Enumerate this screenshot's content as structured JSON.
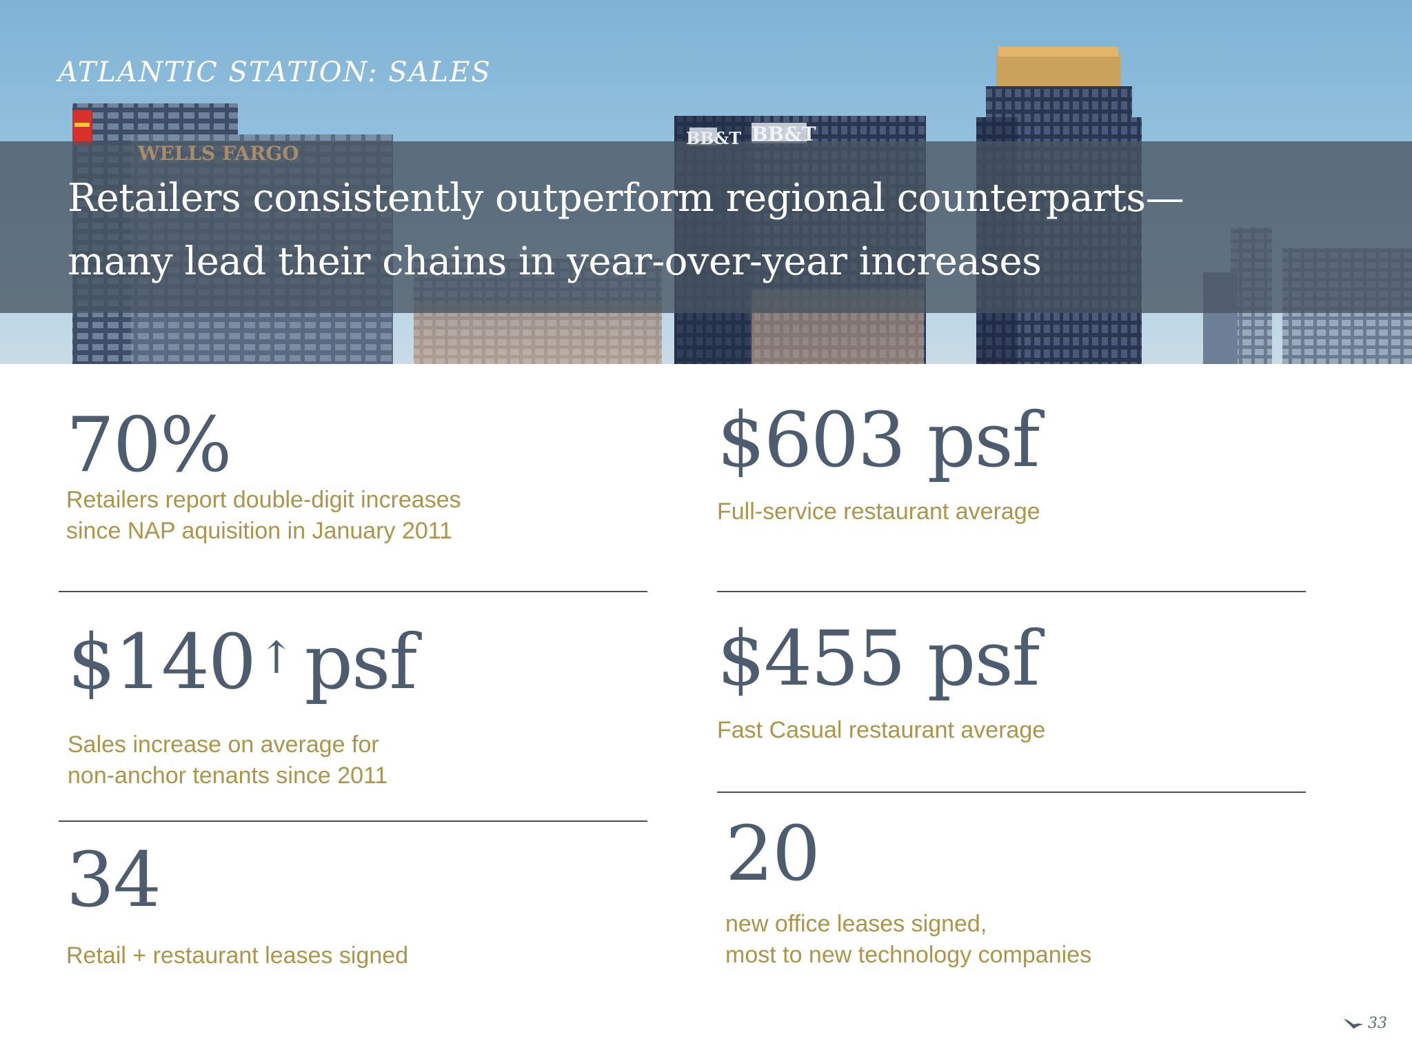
{
  "header": {
    "section_label": "ATLANTIC STATION: SALES",
    "headline_lines": [
      "Retailers consistently outperform regional counterparts—",
      "many lead their chains in year-over-year increases"
    ],
    "building_signs": [
      "WELLS FARGO",
      "BB&T",
      "BB&T"
    ]
  },
  "stats": {
    "left": [
      {
        "value": "70%",
        "description_lines": [
          "Retailers report double-digit increases",
          "since NAP aquisition in January 2011"
        ]
      },
      {
        "value_prefix": "$140",
        "arrow": "↑",
        "value_suffix": "psf",
        "description_lines": [
          "Sales increase on average for",
          "non-anchor tenants since 2011"
        ]
      },
      {
        "value": "34",
        "description_lines": [
          "Retail + restaurant leases signed"
        ]
      }
    ],
    "right": [
      {
        "value": "$603 psf",
        "description_lines": [
          "Full-service restaurant average"
        ]
      },
      {
        "value": "$455 psf",
        "description_lines": [
          "Fast Casual restaurant average"
        ]
      },
      {
        "value": "20",
        "description_lines": [
          "new office leases signed,",
          "most to new technology companies"
        ]
      }
    ]
  },
  "footer": {
    "page_number": "33",
    "logo_icon": "bird-logo-icon"
  },
  "colors": {
    "value_text": "#4d5d6f",
    "description_text": "#ad9449",
    "headline_band": "#485462",
    "divider": "#4a4f57"
  }
}
